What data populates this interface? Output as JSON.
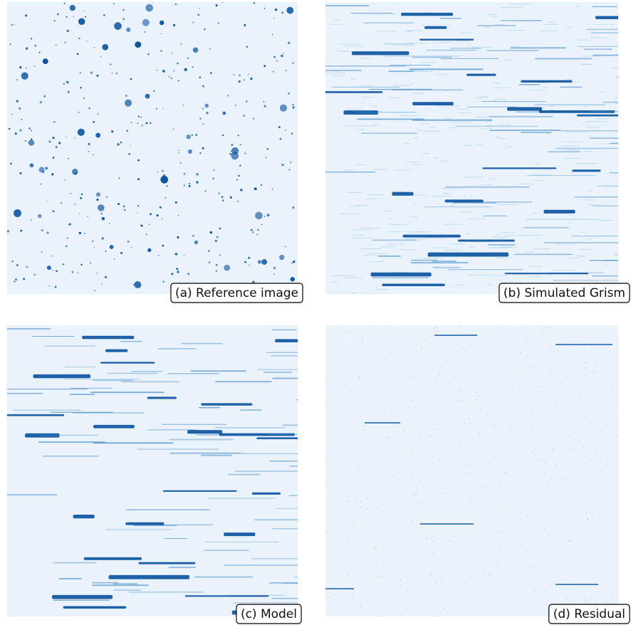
{
  "panels": [
    {
      "label": "(a) Reference image"
    },
    {
      "label": "(b) Simulated Grism"
    },
    {
      "label": "(c) Model"
    },
    {
      "label": "(d) Residual"
    }
  ]
}
